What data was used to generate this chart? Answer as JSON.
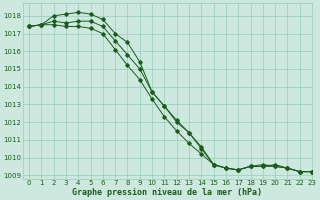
{
  "title": "Graphe pression niveau de la mer (hPa)",
  "bg_color": "#cce8df",
  "grid_color": "#99ccbb",
  "line_color": "#1a5c1a",
  "xlim": [
    -0.5,
    23
  ],
  "ylim": [
    1008.8,
    1018.7
  ],
  "yticks": [
    1009,
    1010,
    1011,
    1012,
    1013,
    1014,
    1015,
    1016,
    1017,
    1018
  ],
  "xticks": [
    0,
    1,
    2,
    3,
    4,
    5,
    6,
    7,
    8,
    9,
    10,
    11,
    12,
    13,
    14,
    15,
    16,
    17,
    18,
    19,
    20,
    21,
    22,
    23
  ],
  "series": [
    {
      "x": [
        0,
        1,
        2,
        3,
        4,
        5,
        6,
        7,
        8,
        9,
        10,
        11,
        12,
        13,
        14,
        15,
        16,
        17,
        18,
        19,
        20,
        21,
        22,
        23
      ],
      "y": [
        1017.4,
        1017.5,
        1018.0,
        1018.1,
        1018.2,
        1018.1,
        1017.8,
        1017.0,
        1016.5,
        1015.4,
        1013.7,
        1012.9,
        1012.1,
        1011.4,
        1010.6,
        1009.6,
        1009.4,
        1009.3,
        1009.5,
        1009.5,
        1009.6,
        1009.4,
        1009.2,
        1009.2
      ]
    },
    {
      "x": [
        0,
        1,
        2,
        3,
        4,
        5,
        6,
        7,
        8,
        9,
        10,
        11,
        12,
        13,
        14,
        15,
        16,
        17,
        18,
        19,
        20,
        21,
        22,
        23
      ],
      "y": [
        1017.4,
        1017.5,
        1017.7,
        1017.6,
        1017.7,
        1017.7,
        1017.4,
        1016.6,
        1015.8,
        1015.0,
        1013.7,
        1012.9,
        1012.0,
        1011.4,
        1010.5,
        1009.6,
        1009.4,
        1009.3,
        1009.5,
        1009.5,
        1009.5,
        1009.4,
        1009.2,
        1009.2
      ]
    },
    {
      "x": [
        0,
        1,
        2,
        3,
        4,
        5,
        6,
        7,
        8,
        9,
        10,
        11,
        12,
        13,
        14,
        15,
        16,
        17,
        18,
        19,
        20,
        21,
        22,
        23
      ],
      "y": [
        1017.4,
        1017.5,
        1017.5,
        1017.4,
        1017.4,
        1017.3,
        1017.0,
        1016.1,
        1015.2,
        1014.4,
        1013.3,
        1012.3,
        1011.5,
        1010.8,
        1010.2,
        1009.6,
        1009.4,
        1009.3,
        1009.5,
        1009.6,
        1009.5,
        1009.4,
        1009.2,
        1009.2
      ]
    }
  ]
}
